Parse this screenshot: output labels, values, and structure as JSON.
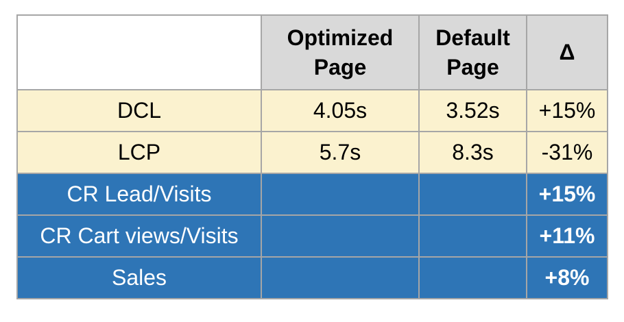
{
  "colors": {
    "header_bg": "#d9d9d9",
    "metric_row_bg": "#fbf2cf",
    "conversion_row_bg": "#2e75b6",
    "border": "#a6a6a6",
    "text_dark": "#000000",
    "text_light": "#ffffff"
  },
  "table": {
    "header": {
      "corner": "",
      "optimized": "Optimized\nPage",
      "default": "Default\nPage",
      "delta": "Δ"
    },
    "rows": [
      {
        "label": "DCL",
        "optimized": "4.05s",
        "default": "3.52s",
        "delta": "+15%"
      },
      {
        "label": "LCP",
        "optimized": "5.7s",
        "default": "8.3s",
        "delta": "-31%"
      },
      {
        "label": "CR Lead/Visits",
        "optimized": "",
        "default": "",
        "delta": "+15%"
      },
      {
        "label": "CR Cart views/Visits",
        "optimized": "",
        "default": "",
        "delta": "+11%"
      },
      {
        "label": "Sales",
        "optimized": "",
        "default": "",
        "delta": "+8%"
      }
    ]
  },
  "chart_data": {
    "type": "table",
    "columns": [
      "",
      "Optimized Page",
      "Default Page",
      "Δ"
    ],
    "rows": [
      [
        "DCL",
        "4.05s",
        "3.52s",
        "+15%"
      ],
      [
        "LCP",
        "5.7s",
        "8.3s",
        "-31%"
      ],
      [
        "CR Lead/Visits",
        "",
        "",
        "+15%"
      ],
      [
        "CR Cart views/Visits",
        "",
        "",
        "+11%"
      ],
      [
        "Sales",
        "",
        "",
        "+8%"
      ]
    ],
    "notes": {
      "metric_rows_style": "cream background, black text",
      "conversion_rows_style": "blue background, white text, bold delta values",
      "header_style": "gray background, bold black text, empty white corner cell"
    }
  }
}
